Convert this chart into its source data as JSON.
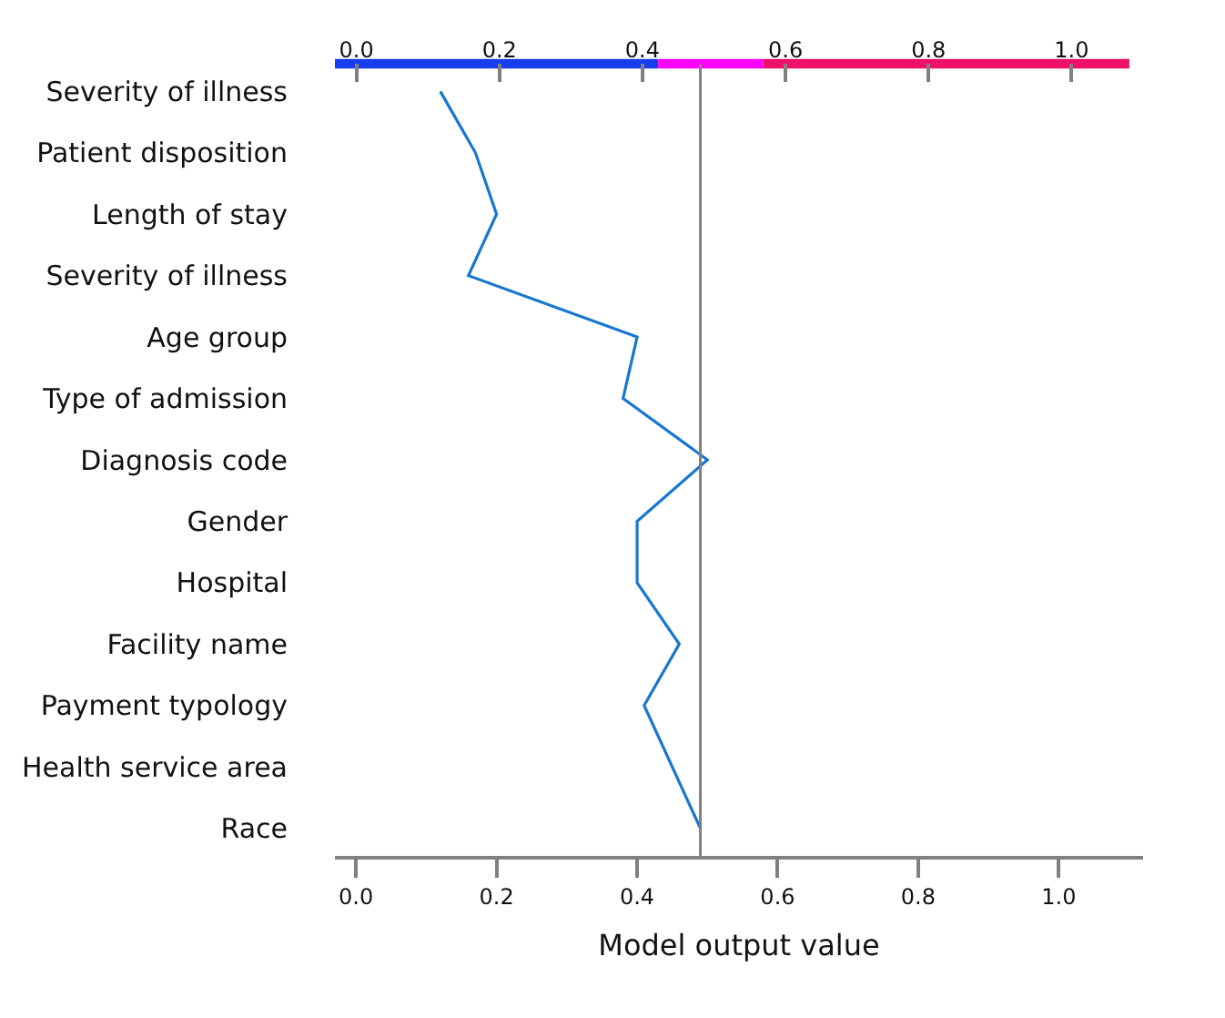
{
  "chart_data": {
    "type": "line",
    "orientation": "horizontal",
    "xlabel": "Model output value",
    "categories": [
      "Severity of illness",
      "Patient disposition",
      "Length of stay",
      "Severity of illness",
      "Age group",
      "Type of admission",
      "Diagnosis code",
      "Gender",
      "Hospital",
      "Facility name",
      "Payment typology",
      "Health service area",
      "Race"
    ],
    "series": [
      {
        "color": "#1777d0",
        "values": [
          0.12,
          0.17,
          0.2,
          0.16,
          0.4,
          0.38,
          0.5,
          0.4,
          0.4,
          0.46,
          0.41,
          0.45,
          0.49
        ]
      }
    ],
    "xlim": [
      -0.03,
      1.12
    ],
    "xticks": [
      {
        "value": 0,
        "label": "0.0"
      },
      0.2,
      0.4,
      0.6,
      0.8,
      {
        "value": 1,
        "label": "1.0"
      }
    ],
    "x2lim": [
      -0.03,
      1.1
    ],
    "x2ticks": [
      {
        "value": 0,
        "label": "0.0"
      },
      0.2,
      0.4,
      0.6,
      0.8,
      {
        "value": 1,
        "label": "1.0"
      }
    ],
    "ref_lines": [
      {
        "axis": "x",
        "value": 0.49,
        "label": null,
        "color": "#808080"
      }
    ],
    "grid": false,
    "marker": "none",
    "line_style": "solid"
  }
}
